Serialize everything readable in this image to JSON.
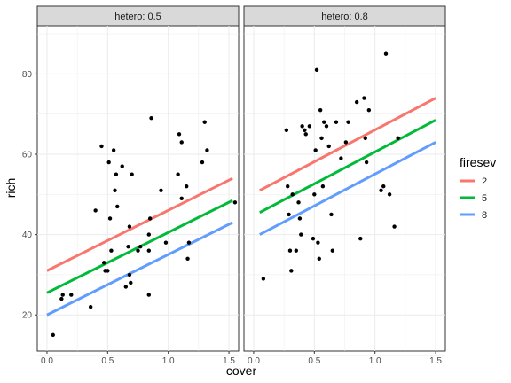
{
  "chart_data": {
    "type": "scatter",
    "xlabel": "cover",
    "ylabel": "rich",
    "xlim": [
      -0.08,
      1.58
    ],
    "ylim": [
      11,
      92
    ],
    "x_ticks": [
      0.0,
      0.5,
      1.0,
      1.5
    ],
    "x_tick_labels": [
      "0.0",
      "0.5",
      "1.0",
      "1.5"
    ],
    "y_ticks": [
      20,
      40,
      60,
      80
    ],
    "y_tick_labels": [
      "20",
      "40",
      "60",
      "80"
    ],
    "grid": true,
    "legend": {
      "title": "firesev",
      "placement": "right",
      "entries": [
        {
          "label": "2",
          "color": "#F8766D"
        },
        {
          "label": "5",
          "color": "#00BA38"
        },
        {
          "label": "8",
          "color": "#619CFF"
        }
      ]
    },
    "panels": [
      {
        "strip": "hetero: 0.5",
        "points": [
          [
            0.05,
            15
          ],
          [
            0.12,
            24
          ],
          [
            0.13,
            25
          ],
          [
            0.2,
            25
          ],
          [
            0.36,
            22
          ],
          [
            0.4,
            46
          ],
          [
            0.45,
            62
          ],
          [
            0.47,
            33
          ],
          [
            0.48,
            31
          ],
          [
            0.5,
            31
          ],
          [
            0.51,
            58
          ],
          [
            0.52,
            44
          ],
          [
            0.53,
            36
          ],
          [
            0.55,
            61
          ],
          [
            0.56,
            51
          ],
          [
            0.57,
            55
          ],
          [
            0.58,
            47
          ],
          [
            0.62,
            57
          ],
          [
            0.65,
            27
          ],
          [
            0.67,
            37
          ],
          [
            0.68,
            42
          ],
          [
            0.68,
            30
          ],
          [
            0.69,
            28
          ],
          [
            0.7,
            55
          ],
          [
            0.75,
            36
          ],
          [
            0.77,
            37
          ],
          [
            0.84,
            25
          ],
          [
            0.84,
            40
          ],
          [
            0.84,
            36
          ],
          [
            0.85,
            44
          ],
          [
            0.86,
            69
          ],
          [
            0.94,
            51
          ],
          [
            0.98,
            38
          ],
          [
            1.08,
            55
          ],
          [
            1.09,
            65
          ],
          [
            1.11,
            49
          ],
          [
            1.11,
            63
          ],
          [
            1.15,
            52
          ],
          [
            1.16,
            34
          ],
          [
            1.17,
            38
          ],
          [
            1.28,
            58
          ],
          [
            1.3,
            68
          ],
          [
            1.32,
            61
          ],
          [
            1.55,
            48
          ]
        ],
        "lines": [
          {
            "firesev": "2",
            "x": [
              0.0,
              1.53
            ],
            "y": [
              31,
              54
            ]
          },
          {
            "firesev": "5",
            "x": [
              0.0,
              1.53
            ],
            "y": [
              25.5,
              48.5
            ]
          },
          {
            "firesev": "8",
            "x": [
              0.0,
              1.53
            ],
            "y": [
              20,
              43
            ]
          }
        ]
      },
      {
        "strip": "hetero: 0.8",
        "points": [
          [
            0.08,
            29
          ],
          [
            0.27,
            66
          ],
          [
            0.28,
            52
          ],
          [
            0.29,
            45
          ],
          [
            0.3,
            36
          ],
          [
            0.31,
            31
          ],
          [
            0.32,
            50
          ],
          [
            0.35,
            36
          ],
          [
            0.37,
            48
          ],
          [
            0.38,
            44
          ],
          [
            0.39,
            40
          ],
          [
            0.4,
            67
          ],
          [
            0.42,
            66
          ],
          [
            0.43,
            65
          ],
          [
            0.46,
            67
          ],
          [
            0.49,
            39
          ],
          [
            0.5,
            50
          ],
          [
            0.51,
            61
          ],
          [
            0.52,
            81
          ],
          [
            0.53,
            38
          ],
          [
            0.54,
            34
          ],
          [
            0.55,
            71
          ],
          [
            0.56,
            64
          ],
          [
            0.57,
            52
          ],
          [
            0.58,
            68
          ],
          [
            0.6,
            67
          ],
          [
            0.62,
            62
          ],
          [
            0.64,
            45
          ],
          [
            0.65,
            36
          ],
          [
            0.68,
            68
          ],
          [
            0.72,
            59
          ],
          [
            0.76,
            63
          ],
          [
            0.78,
            68
          ],
          [
            0.85,
            73
          ],
          [
            0.88,
            39
          ],
          [
            0.91,
            74
          ],
          [
            0.93,
            58
          ],
          [
            0.95,
            71
          ],
          [
            1.05,
            51
          ],
          [
            1.07,
            52
          ],
          [
            1.09,
            85
          ],
          [
            1.12,
            50
          ],
          [
            1.16,
            42
          ],
          [
            1.19,
            64
          ],
          [
            0.92,
            64
          ]
        ],
        "lines": [
          {
            "firesev": "2",
            "x": [
              0.05,
              1.5
            ],
            "y": [
              51,
              74
            ]
          },
          {
            "firesev": "5",
            "x": [
              0.05,
              1.5
            ],
            "y": [
              45.5,
              68.5
            ]
          },
          {
            "firesev": "8",
            "x": [
              0.05,
              1.5
            ],
            "y": [
              40,
              63
            ]
          }
        ]
      }
    ]
  }
}
